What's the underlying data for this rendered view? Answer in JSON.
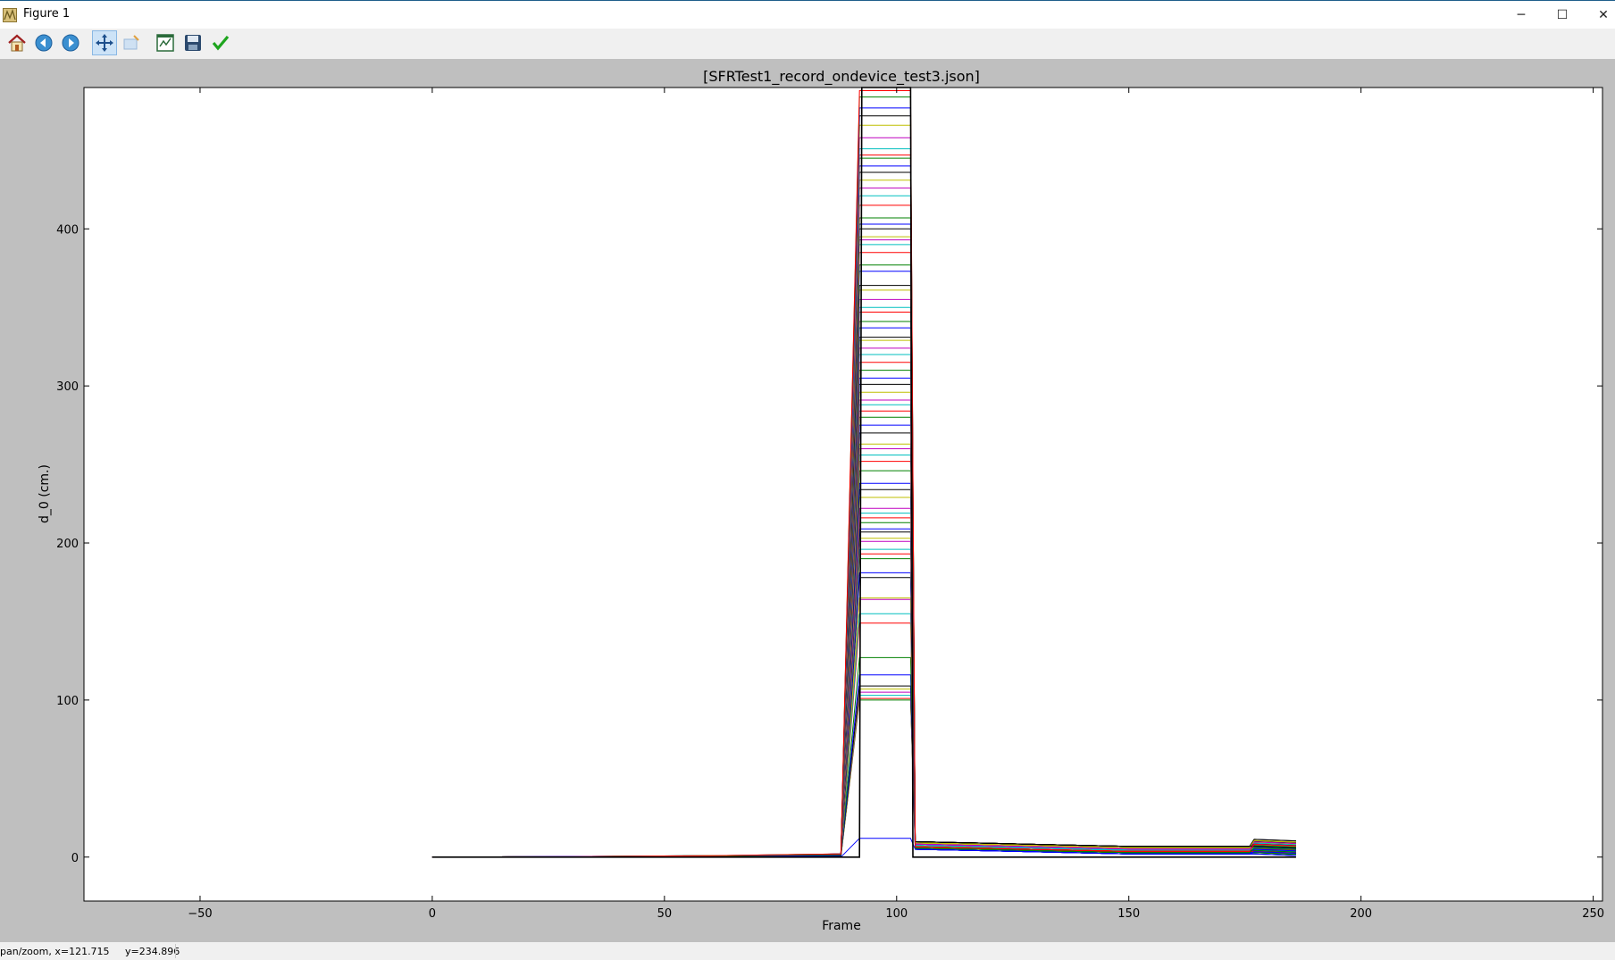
{
  "window": {
    "title": "Figure 1",
    "minimize_label": "─",
    "maximize_label": "☐",
    "close_label": "✕"
  },
  "toolbar": {
    "buttons": [
      {
        "name": "home-button",
        "icon": "home-icon"
      },
      {
        "name": "back-button",
        "icon": "back-arrow-icon"
      },
      {
        "name": "forward-button",
        "icon": "forward-arrow-icon"
      },
      {
        "name": "pan-button",
        "icon": "pan-move-icon",
        "active": true
      },
      {
        "name": "zoom-button",
        "icon": "zoom-rect-icon"
      },
      {
        "name": "subplots-button",
        "icon": "subplots-icon"
      },
      {
        "name": "save-button",
        "icon": "floppy-save-icon"
      },
      {
        "name": "edit-axis-button",
        "icon": "checkmark-edit-icon"
      }
    ]
  },
  "status": {
    "text": "pan/zoom, x=121.715     y=234.896"
  },
  "colors": {
    "background": "#bfbfbf",
    "plot_bg": "#ffffff",
    "series": [
      "#0000ff",
      "#008000",
      "#ff0000",
      "#00bfbf",
      "#bf00bf",
      "#bfbf00",
      "#000000"
    ]
  },
  "chart_data": {
    "type": "line",
    "title": "[SFRTest1_record_ondevice_test3.json]",
    "xlabel": "Frame",
    "ylabel": "d_0 (cm.)",
    "xlim": [
      -75,
      252
    ],
    "ylim": [
      -28,
      490
    ],
    "xticks": [
      -50,
      0,
      50,
      100,
      150,
      200,
      250
    ],
    "yticks": [
      0,
      100,
      200,
      300,
      400
    ],
    "xtick_labels": [
      "−50",
      "0",
      "50",
      "100",
      "150",
      "200",
      "250"
    ],
    "ytick_labels": [
      "0",
      "100",
      "200",
      "300",
      "400"
    ],
    "grid": false,
    "spike": {
      "x_start": 92,
      "x_end": 103
    },
    "tail": {
      "x_end": 186,
      "step_x": 177
    },
    "plateau_levels": [
      12,
      100,
      101,
      103,
      105,
      107,
      109,
      116,
      127,
      149,
      155,
      164,
      165,
      178,
      181,
      190,
      193,
      196,
      201,
      203,
      207,
      209,
      213,
      216,
      219,
      222,
      229,
      234,
      238,
      246,
      252,
      256,
      260,
      263,
      270,
      275,
      280,
      284,
      288,
      291,
      296,
      301,
      305,
      310,
      315,
      320,
      324,
      329,
      331,
      337,
      341,
      347,
      350,
      355,
      361,
      364,
      373,
      377,
      385,
      390,
      393,
      395,
      400,
      403,
      407,
      415,
      421,
      426,
      431,
      436,
      440,
      445,
      447,
      451,
      458,
      466,
      472,
      477,
      484,
      488
    ]
  }
}
